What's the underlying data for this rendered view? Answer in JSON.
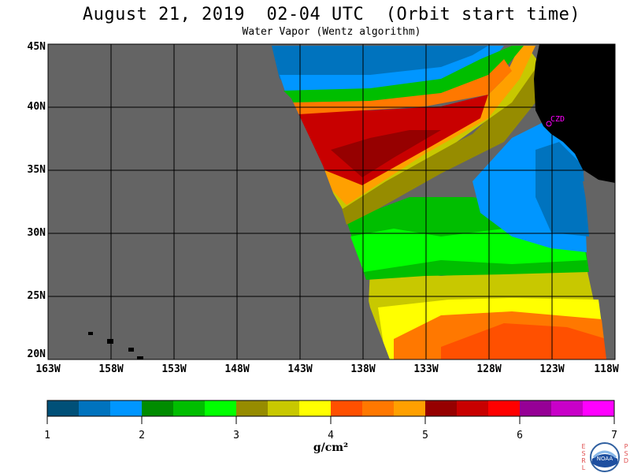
{
  "header": {
    "title": "August 21, 2019  02-04 UTC  (Orbit start time)",
    "subtitle": "Water Vapor (Wentz algorithm)"
  },
  "map": {
    "lat_labels": [
      "45N",
      "40N",
      "35N",
      "30N",
      "25N",
      "20N"
    ],
    "lon_labels": [
      "163W",
      "158W",
      "153W",
      "148W",
      "143W",
      "138W",
      "133W",
      "128W",
      "123W",
      "118W"
    ],
    "station_label": "CZD",
    "lat_range": [
      20,
      45
    ],
    "lon_range": [
      -163,
      -118
    ],
    "grid": true,
    "colors": {
      "land": "#000000",
      "no_data": "#646464",
      "station": "#ff00ff"
    }
  },
  "colorbar": {
    "tick_labels": [
      "1",
      "2",
      "3",
      "4",
      "5",
      "6",
      "7"
    ],
    "unit": "g/cm²",
    "colors": [
      "#005078",
      "#0073be",
      "#0096ff",
      "#008c00",
      "#00be00",
      "#00ff00",
      "#968c00",
      "#c8c800",
      "#ffff00",
      "#ff5000",
      "#ff7800",
      "#ffa000",
      "#960000",
      "#c80000",
      "#ff0000",
      "#960096",
      "#c800c8",
      "#ff00ff"
    ]
  },
  "logo": {
    "left_letters": [
      "E",
      "S",
      "R",
      "L"
    ],
    "right_letters": [
      "P",
      "S",
      "D"
    ],
    "emblem": "NOAA"
  }
}
